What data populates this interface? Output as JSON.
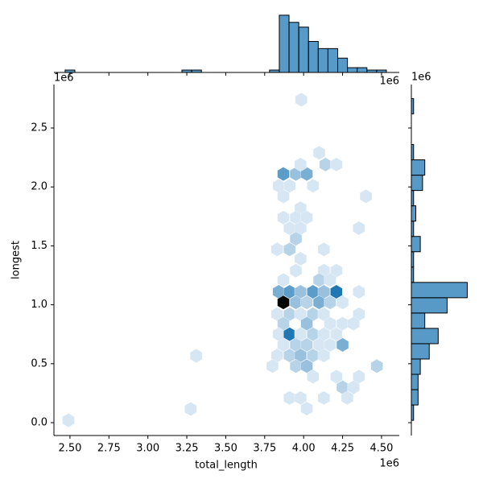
{
  "chart_data": {
    "type": "hexbin",
    "x_label": "total_length",
    "y_label": "longest",
    "x_offset_label": "1e6",
    "y_offset_label": "1e6",
    "top_marginal_offset_label": "1e6",
    "right_marginal_offset_label": "1e6",
    "xlim": [
      2397000,
      4614000
    ],
    "ylim": [
      -109000,
      2869000
    ],
    "xticks": [
      {
        "value": 2500000,
        "label": "2.50"
      },
      {
        "value": 2750000,
        "label": "2.75"
      },
      {
        "value": 3000000,
        "label": "3.00"
      },
      {
        "value": 3250000,
        "label": "3.25"
      },
      {
        "value": 3500000,
        "label": "3.50"
      },
      {
        "value": 3750000,
        "label": "3.75"
      },
      {
        "value": 4000000,
        "label": "4.00"
      },
      {
        "value": 4250000,
        "label": "4.25"
      },
      {
        "value": 4500000,
        "label": "4.50"
      }
    ],
    "yticks": [
      {
        "value": 0,
        "label": "0.0"
      },
      {
        "value": 500000,
        "label": "0.5"
      },
      {
        "value": 1000000,
        "label": "1.0"
      },
      {
        "value": 1500000,
        "label": "1.5"
      },
      {
        "value": 2000000,
        "label": "2.0"
      },
      {
        "value": 2500000,
        "label": "2.5"
      }
    ],
    "colormap": [
      [
        0,
        "#f4f8fd"
      ],
      [
        0.7,
        "#1f77b4"
      ],
      [
        1,
        "#000000"
      ]
    ],
    "hist_color": "#1f77b4",
    "hist_alpha": 0.75,
    "x": [
      2490000,
      3275000,
      3310000,
      3985000,
      4100000,
      3870000,
      3950000,
      4020000,
      3840000,
      3980000,
      4140000,
      4210000,
      3910000,
      4060000,
      3870000,
      4400000,
      3980000,
      3870000,
      3950000,
      4020000,
      3910000,
      3980000,
      4355000,
      3950000,
      3830000,
      3910000,
      4130000,
      3980000,
      3950000,
      4130000,
      4210000,
      3870000,
      4100000,
      4170000,
      3840000,
      3910000,
      3980000,
      4060000,
      4130000,
      4210000,
      4355000,
      3870000,
      3950000,
      4020000,
      4100000,
      4170000,
      4250000,
      3830000,
      3910000,
      3980000,
      4060000,
      4130000,
      4355000,
      3870000,
      4020000,
      4170000,
      4250000,
      4320000,
      3840000,
      3910000,
      3980000,
      4060000,
      4130000,
      4210000,
      3870000,
      3950000,
      4020000,
      4100000,
      4170000,
      4250000,
      3830000,
      3910000,
      3980000,
      4060000,
      4130000,
      3800000,
      3950000,
      4020000,
      4470000,
      4060000,
      4210000,
      4355000,
      4250000,
      4320000,
      3910000,
      3980000,
      4130000,
      4280000,
      4020000
    ],
    "y": [
      20000,
      116000,
      567000,
      2740000,
      2290000,
      2110000,
      2110000,
      2110000,
      2010000,
      2190000,
      2190000,
      2190000,
      2010000,
      2010000,
      1920000,
      1920000,
      1820000,
      1740000,
      1740000,
      1740000,
      1650000,
      1650000,
      1650000,
      1560000,
      1470000,
      1470000,
      1470000,
      1390000,
      1290000,
      1290000,
      1290000,
      1210000,
      1210000,
      1210000,
      1110000,
      1110000,
      1110000,
      1110000,
      1110000,
      1110000,
      1110000,
      1020000,
      1020000,
      1020000,
      1020000,
      1020000,
      1020000,
      920000,
      920000,
      920000,
      920000,
      920000,
      920000,
      840000,
      840000,
      840000,
      840000,
      840000,
      750000,
      750000,
      750000,
      750000,
      750000,
      750000,
      660000,
      660000,
      660000,
      660000,
      660000,
      660000,
      570000,
      570000,
      570000,
      570000,
      570000,
      480000,
      480000,
      480000,
      480000,
      390000,
      390000,
      390000,
      300000,
      300000,
      210000,
      210000,
      210000,
      210000,
      120000
    ],
    "counts": [
      1,
      1,
      1,
      1,
      1,
      5,
      3,
      4,
      1,
      1,
      2,
      1,
      1,
      1,
      1,
      1,
      1,
      1,
      1,
      1,
      1,
      1,
      1,
      2,
      1,
      2,
      1,
      1,
      1,
      1,
      1,
      1,
      2,
      1,
      4,
      5,
      3,
      5,
      3,
      7,
      1,
      10,
      3,
      2,
      4,
      2,
      1,
      1,
      2,
      1,
      2,
      1,
      1,
      2,
      3,
      1,
      1,
      1,
      1,
      7,
      1,
      2,
      1,
      1,
      1,
      2,
      2,
      1,
      1,
      4,
      1,
      2,
      3,
      2,
      1,
      1,
      2,
      3,
      2,
      1,
      1,
      1,
      2,
      1,
      1,
      1,
      1,
      1,
      1
    ],
    "x_hist": {
      "bins": [
        2468750,
        2531250,
        2593750,
        2656250,
        2718750,
        2781250,
        2843750,
        2906250,
        2968750,
        3031250,
        3093750,
        3156250,
        3218750,
        3281250,
        3343750,
        3406250,
        3468750,
        3531250,
        3593750,
        3656250,
        3718750,
        3781250,
        3843750,
        3906250,
        3968750,
        4031250,
        4093750,
        4156250,
        4218750,
        4281250,
        4343750,
        4406250,
        4468750,
        4531250
      ],
      "counts": [
        1,
        0,
        0,
        0,
        0,
        0,
        0,
        0,
        0,
        0,
        0,
        0,
        1,
        1,
        0,
        0,
        0,
        0,
        0,
        0,
        0,
        1,
        24,
        21,
        19,
        13,
        10,
        10,
        6,
        2,
        2,
        1,
        1
      ],
      "ylim": [
        0,
        27
      ]
    },
    "y_hist": {
      "bins": [
        20000,
        150000,
        280000,
        410000,
        540000,
        670000,
        800000,
        930000,
        1060000,
        1190000,
        1320000,
        1450000,
        1580000,
        1710000,
        1840000,
        1970000,
        2100000,
        2230000,
        2360000,
        2490000,
        2620000,
        2750000
      ],
      "counts": [
        1,
        3,
        3,
        4,
        8,
        12,
        6,
        16,
        25,
        1,
        1,
        4,
        1,
        2,
        1,
        5,
        6,
        1,
        0,
        0,
        1
      ],
      "xlim": [
        0,
        27
      ]
    }
  }
}
